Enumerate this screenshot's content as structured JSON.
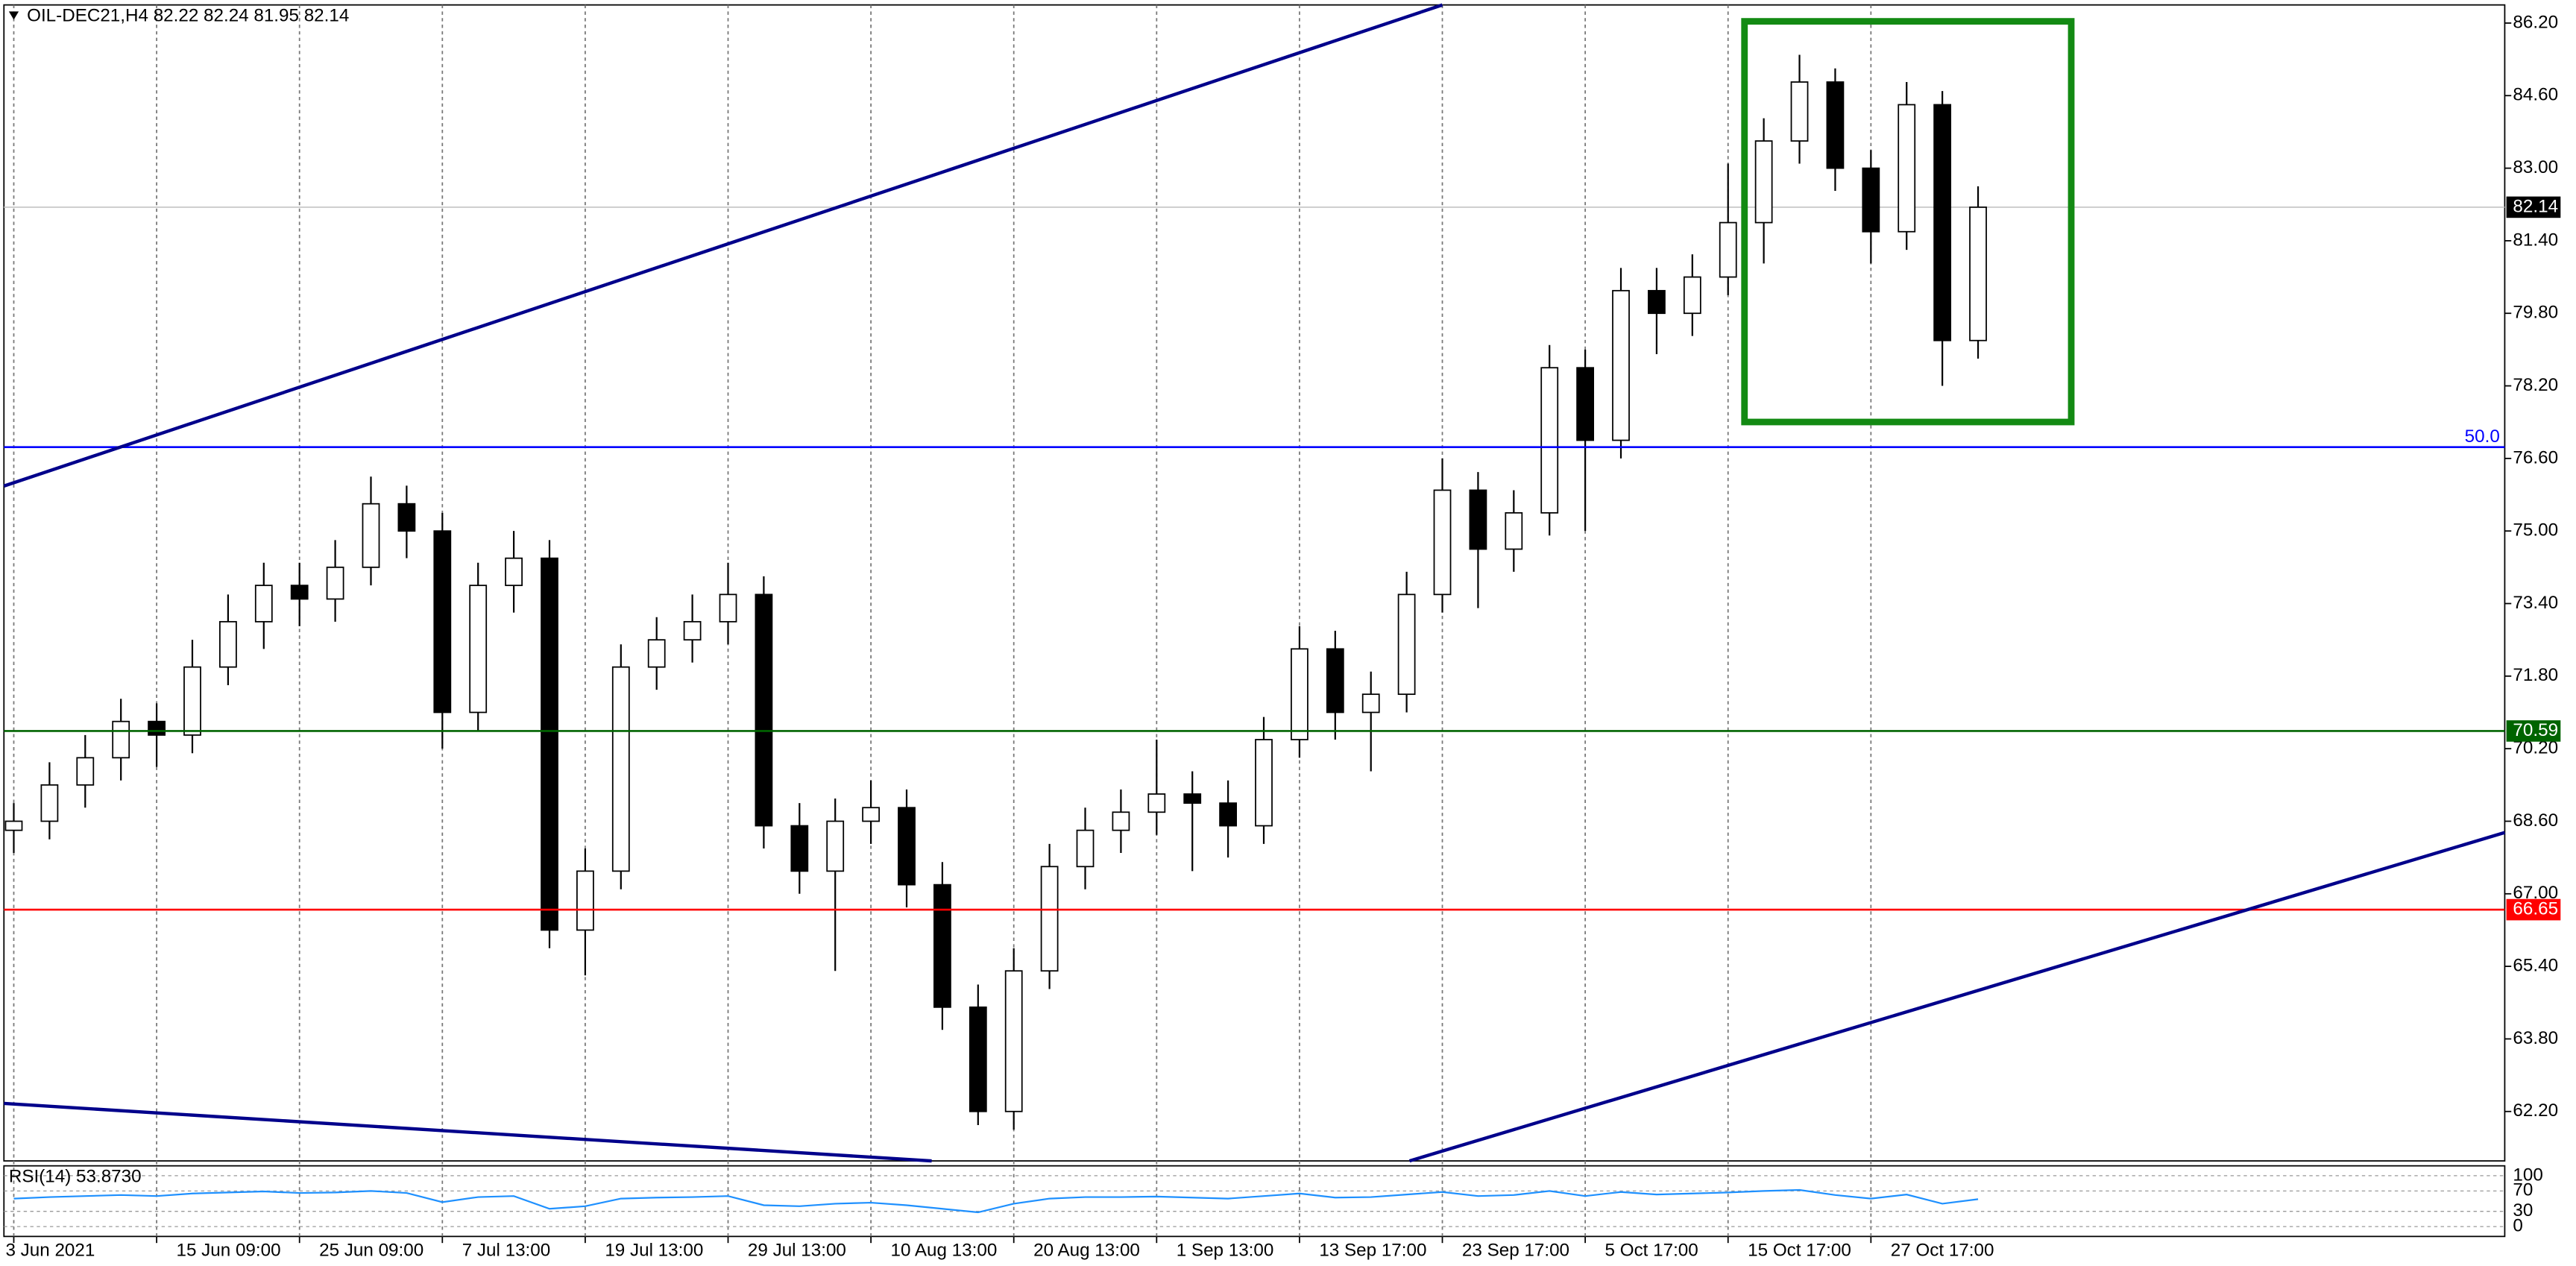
{
  "chart_data": {
    "type": "candlestick",
    "title": "OIL-DEC21,H4  82.22 82.24 81.95 82.14",
    "categories": [
      "3 Jun 2021",
      null,
      null,
      null,
      "15 Jun 09:00",
      null,
      null,
      null,
      "25 Jun 09:00",
      null,
      null,
      null,
      "7 Jul 13:00",
      null,
      null,
      null,
      "19 Jul 13:00",
      null,
      null,
      null,
      "29 Jul 13:00",
      null,
      null,
      null,
      "10 Aug 13:00",
      null,
      null,
      null,
      "20 Aug 13:00",
      null,
      null,
      null,
      "1 Sep 13:00",
      null,
      null,
      null,
      "13 Sep 17:00",
      null,
      null,
      null,
      "23 Sep 17:00",
      null,
      null,
      null,
      "5 Oct 17:00",
      null,
      null,
      null,
      "15 Oct 17:00",
      null,
      null,
      null,
      "27 Oct 17:00",
      null,
      null,
      null
    ],
    "open": [
      68.4,
      68.6,
      69.4,
      70.0,
      70.8,
      70.5,
      72.0,
      73.0,
      73.8,
      73.5,
      74.2,
      75.6,
      75.0,
      71.0,
      73.8,
      74.4,
      66.2,
      67.5,
      72.0,
      72.6,
      73.0,
      73.6,
      68.5,
      67.5,
      68.6,
      68.9,
      67.2,
      64.5,
      62.2,
      65.3,
      67.6,
      68.4,
      68.8,
      69.2,
      69.0,
      68.5,
      70.4,
      72.4,
      71.0,
      71.4,
      73.6,
      75.9,
      74.6,
      75.4,
      78.6,
      77.0,
      80.3,
      79.8,
      80.6,
      81.8,
      83.6,
      84.9,
      83.0,
      81.6,
      84.4,
      79.2
    ],
    "high": [
      69.0,
      69.9,
      70.5,
      71.3,
      71.2,
      72.6,
      73.6,
      74.3,
      74.3,
      74.8,
      76.2,
      76.0,
      75.4,
      74.3,
      75.0,
      74.8,
      68.0,
      72.5,
      73.1,
      73.6,
      74.3,
      74.0,
      69.0,
      69.1,
      69.5,
      69.3,
      67.7,
      65.0,
      65.8,
      68.1,
      68.9,
      69.3,
      70.4,
      69.7,
      69.5,
      70.9,
      72.9,
      72.8,
      71.9,
      74.1,
      76.6,
      76.3,
      75.9,
      79.1,
      79.0,
      80.8,
      80.8,
      81.1,
      83.1,
      84.1,
      85.5,
      85.2,
      83.4,
      84.9,
      84.7,
      82.6
    ],
    "low": [
      67.9,
      68.2,
      68.9,
      69.5,
      69.8,
      70.1,
      71.6,
      72.4,
      72.9,
      73.0,
      73.8,
      74.4,
      70.2,
      70.6,
      73.2,
      65.8,
      65.2,
      67.1,
      71.5,
      72.1,
      72.5,
      68.0,
      67.0,
      65.3,
      68.1,
      66.7,
      64.0,
      61.9,
      61.8,
      64.9,
      67.1,
      67.9,
      68.3,
      67.5,
      67.8,
      68.1,
      70.0,
      70.4,
      69.7,
      71.0,
      73.2,
      73.3,
      74.1,
      74.9,
      75.0,
      76.6,
      78.9,
      79.3,
      80.2,
      80.9,
      83.1,
      82.5,
      80.9,
      81.2,
      78.2,
      78.8
    ],
    "close": [
      68.6,
      69.4,
      70.0,
      70.8,
      70.5,
      72.0,
      73.0,
      73.8,
      73.5,
      74.2,
      75.6,
      75.0,
      71.0,
      73.8,
      74.4,
      66.2,
      67.5,
      72.0,
      72.6,
      73.0,
      73.6,
      68.5,
      67.5,
      68.6,
      68.9,
      67.2,
      64.5,
      62.2,
      65.3,
      67.6,
      68.4,
      68.8,
      69.2,
      69.0,
      68.5,
      70.4,
      72.4,
      71.0,
      71.4,
      73.6,
      75.9,
      74.6,
      75.4,
      78.6,
      77.0,
      80.3,
      79.8,
      80.6,
      81.8,
      83.6,
      84.9,
      83.0,
      81.6,
      84.4,
      79.2,
      82.14
    ],
    "up_color": "#ffffff",
    "down_color": "#000000",
    "ylim": [
      61.11,
      86.6
    ],
    "yticks": [
      {
        "value": 62.2,
        "label": "62.20"
      },
      {
        "value": 63.8,
        "label": "63.80"
      },
      {
        "value": 65.4,
        "label": "65.40"
      },
      {
        "value": 67,
        "label": "67.00"
      },
      {
        "value": 68.6,
        "label": "68.60"
      },
      {
        "value": 70.2,
        "label": "70.20"
      },
      {
        "value": 71.8,
        "label": "71.80"
      },
      {
        "value": 73.4,
        "label": "73.40"
      },
      {
        "value": 75,
        "label": "75.00"
      },
      {
        "value": 76.6,
        "label": "76.60"
      },
      {
        "value": 78.2,
        "label": "78.20"
      },
      {
        "value": 79.8,
        "label": "79.80"
      },
      {
        "value": 81.4,
        "label": "81.40"
      },
      {
        "value": 83,
        "label": "83.00"
      },
      {
        "value": 84.6,
        "label": "84.60"
      },
      {
        "value": 86.2,
        "label": "86.20"
      }
    ],
    "grid": true,
    "last_price": 82.14,
    "levels": [
      {
        "value": 76.85,
        "label": "50.0",
        "color": "#0000ff"
      },
      {
        "value": 70.59,
        "color": "#006400"
      },
      {
        "value": 66.65,
        "color": "#ff0000"
      }
    ],
    "rsi": {
      "label": "RSI(14) 53.8730",
      "color": "#1e90ff",
      "values": [
        55,
        58,
        60,
        62,
        60,
        65,
        67,
        69,
        66,
        67,
        70,
        66,
        48,
        58,
        60,
        35,
        40,
        55,
        57,
        58,
        60,
        42,
        40,
        45,
        47,
        42,
        35,
        28,
        45,
        55,
        58,
        58,
        59,
        57,
        55,
        60,
        65,
        57,
        58,
        63,
        68,
        60,
        62,
        70,
        60,
        68,
        63,
        65,
        67,
        70,
        72,
        62,
        55,
        63,
        45,
        53.873
      ],
      "ylim": [
        0,
        100
      ],
      "yticks": [
        100,
        70,
        30,
        0
      ]
    }
  }
}
